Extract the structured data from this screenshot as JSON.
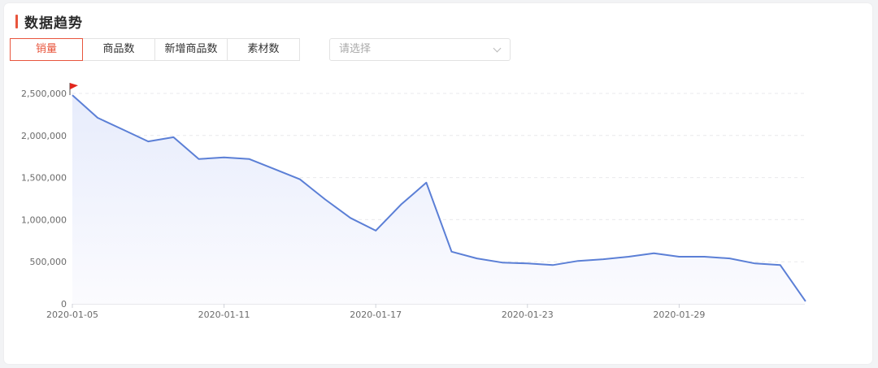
{
  "header": {
    "title": "数据趋势"
  },
  "tabs": [
    {
      "label": "销量",
      "active": true
    },
    {
      "label": "商品数",
      "active": false
    },
    {
      "label": "新增商品数",
      "active": false
    },
    {
      "label": "素材数",
      "active": false
    }
  ],
  "select": {
    "placeholder": "请选择",
    "icon": "chevron-down-icon"
  },
  "colors": {
    "accent": "#e8553d",
    "line": "#5b7fd6",
    "area_top": "#e7ecfc",
    "area_bottom": "#fbfbfe",
    "flag": "#e2261d"
  },
  "chart_data": {
    "type": "area",
    "title": "",
    "xlabel": "",
    "ylabel": "",
    "ylim": [
      0,
      2500000
    ],
    "yticks": [
      0,
      500000,
      1000000,
      1500000,
      2000000,
      2500000
    ],
    "ytick_labels": [
      "0",
      "500,000",
      "1,000,000",
      "1,500,000",
      "2,000,000",
      "2,500,000"
    ],
    "xtick_labels": [
      "2020-01-05",
      "2020-01-11",
      "2020-01-17",
      "2020-01-23",
      "2020-01-29"
    ],
    "x": [
      "2020-01-05",
      "2020-01-06",
      "2020-01-07",
      "2020-01-08",
      "2020-01-09",
      "2020-01-10",
      "2020-01-11",
      "2020-01-12",
      "2020-01-13",
      "2020-01-14",
      "2020-01-15",
      "2020-01-16",
      "2020-01-17",
      "2020-01-18",
      "2020-01-19",
      "2020-01-20",
      "2020-01-21",
      "2020-01-22",
      "2020-01-23",
      "2020-01-24",
      "2020-01-25",
      "2020-01-26",
      "2020-01-27",
      "2020-01-28",
      "2020-01-29",
      "2020-01-30",
      "2020-01-31",
      "2020-02-01",
      "2020-02-02",
      "2020-02-03"
    ],
    "series": [
      {
        "values": [
          2480000,
          2210000,
          2070000,
          1930000,
          1980000,
          1720000,
          1740000,
          1720000,
          1600000,
          1480000,
          1240000,
          1020000,
          870000,
          1180000,
          1440000,
          620000,
          540000,
          490000,
          480000,
          460000,
          510000,
          530000,
          560000,
          600000,
          560000,
          560000,
          540000,
          480000,
          460000,
          30000
        ]
      }
    ],
    "max_marker": {
      "x": "2020-01-05",
      "icon": "flag-icon"
    },
    "grid": "horizontal-dashed",
    "legend": "none"
  }
}
